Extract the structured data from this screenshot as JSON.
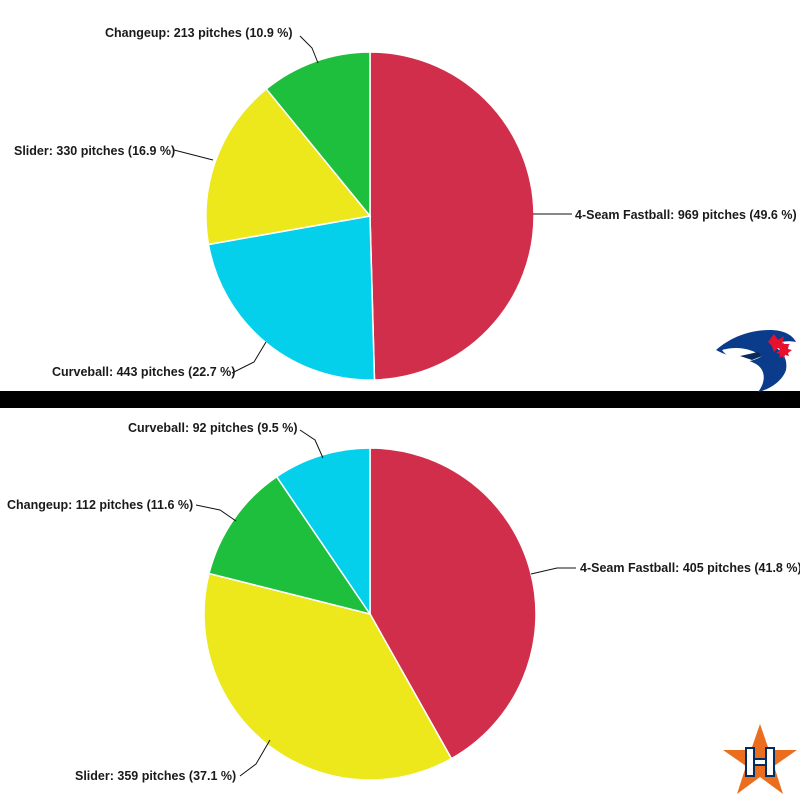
{
  "colors": {
    "four_seam_fastball": "#d12e4b",
    "curveball": "#04d0ec",
    "slider": "#ece81c",
    "changeup": "#1ebf3c",
    "divider": "#000000"
  },
  "logos": {
    "top": "blue-jay-logo",
    "bottom": "astros-star-logo"
  },
  "chart_data": [
    {
      "type": "pie",
      "title": "",
      "slices": [
        {
          "key": "four_seam_fastball",
          "name": "4-Seam Fastball",
          "pitches": 969,
          "percent": 49.6,
          "label": "4-Seam Fastball: 969 pitches (49.6 %)"
        },
        {
          "key": "curveball",
          "name": "Curveball",
          "pitches": 443,
          "percent": 22.7,
          "label": "Curveball: 443 pitches (22.7 %)"
        },
        {
          "key": "slider",
          "name": "Slider",
          "pitches": 330,
          "percent": 16.9,
          "label": "Slider: 330 pitches (16.9 %)"
        },
        {
          "key": "changeup",
          "name": "Changeup",
          "pitches": 213,
          "percent": 10.9,
          "label": "Changeup: 213 pitches (10.9 %)"
        }
      ]
    },
    {
      "type": "pie",
      "title": "",
      "slices": [
        {
          "key": "four_seam_fastball",
          "name": "4-Seam Fastball",
          "pitches": 405,
          "percent": 41.8,
          "label": "4-Seam Fastball: 405 pitches (41.8 %)"
        },
        {
          "key": "slider",
          "name": "Slider",
          "pitches": 359,
          "percent": 37.1,
          "label": "Slider: 359 pitches (37.1 %)"
        },
        {
          "key": "changeup",
          "name": "Changeup",
          "pitches": 112,
          "percent": 11.6,
          "label": "Changeup: 112 pitches (11.6 %)"
        },
        {
          "key": "curveball",
          "name": "Curveball",
          "pitches": 92,
          "percent": 9.5,
          "label": "Curveball: 92 pitches (9.5 %)"
        }
      ]
    }
  ]
}
